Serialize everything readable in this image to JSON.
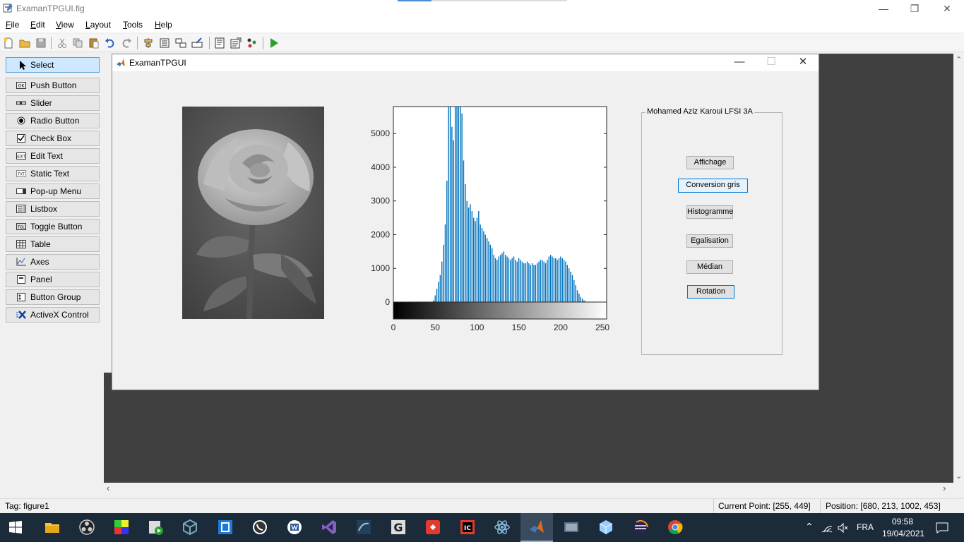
{
  "window": {
    "title": "ExamanTPGUI.fig"
  },
  "menu": [
    {
      "label": "File",
      "ul": "F",
      "rest": "ile"
    },
    {
      "label": "Edit",
      "ul": "E",
      "rest": "dit"
    },
    {
      "label": "View",
      "ul": "V",
      "rest": "iew"
    },
    {
      "label": "Layout",
      "ul": "L",
      "rest": "ayout"
    },
    {
      "label": "Tools",
      "ul": "T",
      "rest": "ools"
    },
    {
      "label": "Help",
      "ul": "H",
      "rest": "elp"
    }
  ],
  "palette": [
    {
      "label": "Select",
      "icon": "cursor-icon"
    },
    {
      "label": "Push Button",
      "icon": "push-button-icon"
    },
    {
      "label": "Slider",
      "icon": "slider-icon"
    },
    {
      "label": "Radio Button",
      "icon": "radio-button-icon"
    },
    {
      "label": "Check Box",
      "icon": "check-box-icon"
    },
    {
      "label": "Edit Text",
      "icon": "edit-text-icon"
    },
    {
      "label": "Static Text",
      "icon": "static-text-icon"
    },
    {
      "label": "Pop-up Menu",
      "icon": "popup-menu-icon"
    },
    {
      "label": "Listbox",
      "icon": "listbox-icon"
    },
    {
      "label": "Toggle Button",
      "icon": "toggle-button-icon"
    },
    {
      "label": "Table",
      "icon": "table-icon"
    },
    {
      "label": "Axes",
      "icon": "axes-icon"
    },
    {
      "label": "Panel",
      "icon": "panel-icon"
    },
    {
      "label": "Button Group",
      "icon": "button-group-icon"
    },
    {
      "label": "ActiveX Control",
      "icon": "activex-icon"
    }
  ],
  "palette_icon_text": {
    "push": "OK",
    "edit": "EDIT",
    "static": "TXT",
    "toggle": "TGL"
  },
  "figure": {
    "title": "ExamanTPGUI",
    "panel_title": "Mohamed Aziz Karoui LFSI 3A",
    "buttons": [
      "Affichage",
      "Conversion gris",
      "Histogramme",
      "Egalisation",
      "Médian",
      "Rotation"
    ]
  },
  "chart_data": {
    "type": "bar",
    "title": "",
    "xlabel": "",
    "ylabel": "",
    "xlim": [
      0,
      255
    ],
    "ylim": [
      0,
      5800
    ],
    "xticks": [
      "0",
      "50",
      "100",
      "150",
      "200",
      "250"
    ],
    "yticks": [
      "0",
      "1000",
      "2000",
      "3000",
      "4000",
      "5000"
    ],
    "colorbar": "grayscale",
    "x": [
      48,
      50,
      52,
      54,
      56,
      58,
      60,
      62,
      64,
      66,
      68,
      70,
      72,
      74,
      76,
      78,
      80,
      82,
      84,
      86,
      88,
      90,
      92,
      94,
      96,
      98,
      100,
      102,
      104,
      106,
      108,
      110,
      112,
      114,
      116,
      118,
      120,
      122,
      124,
      126,
      128,
      130,
      132,
      134,
      136,
      138,
      140,
      142,
      144,
      146,
      148,
      150,
      152,
      154,
      156,
      158,
      160,
      162,
      164,
      166,
      168,
      170,
      172,
      174,
      176,
      178,
      180,
      182,
      184,
      186,
      188,
      190,
      192,
      194,
      196,
      198,
      200,
      202,
      204,
      206,
      208,
      210,
      212,
      214,
      216,
      218,
      220,
      222,
      224,
      226,
      228,
      230,
      232,
      234,
      236
    ],
    "values": [
      50,
      200,
      400,
      600,
      800,
      1200,
      1700,
      2300,
      3600,
      5800,
      5800,
      5200,
      4800,
      5800,
      5800,
      5800,
      5800,
      5600,
      4200,
      3500,
      3000,
      2800,
      2900,
      2700,
      2500,
      2400,
      2500,
      2700,
      2300,
      2200,
      2100,
      2000,
      1900,
      1800,
      1700,
      1600,
      1400,
      1300,
      1250,
      1350,
      1400,
      1450,
      1500,
      1400,
      1350,
      1300,
      1250,
      1300,
      1350,
      1250,
      1200,
      1300,
      1250,
      1200,
      1150,
      1150,
      1200,
      1150,
      1100,
      1150,
      1100,
      1100,
      1150,
      1200,
      1250,
      1250,
      1200,
      1150,
      1250,
      1350,
      1400,
      1350,
      1300,
      1300,
      1250,
      1300,
      1350,
      1300,
      1250,
      1200,
      1100,
      1000,
      900,
      800,
      650,
      500,
      350,
      250,
      150,
      100,
      50,
      20,
      10,
      5,
      0
    ]
  },
  "status": {
    "tag": "Tag: figure1",
    "current_point": "Current Point:  [255, 449]",
    "position": "Position: [680, 213, 1002, 453]"
  },
  "taskbar": {
    "lang": "FRA",
    "time": "09:58",
    "date": "19/04/2021"
  }
}
